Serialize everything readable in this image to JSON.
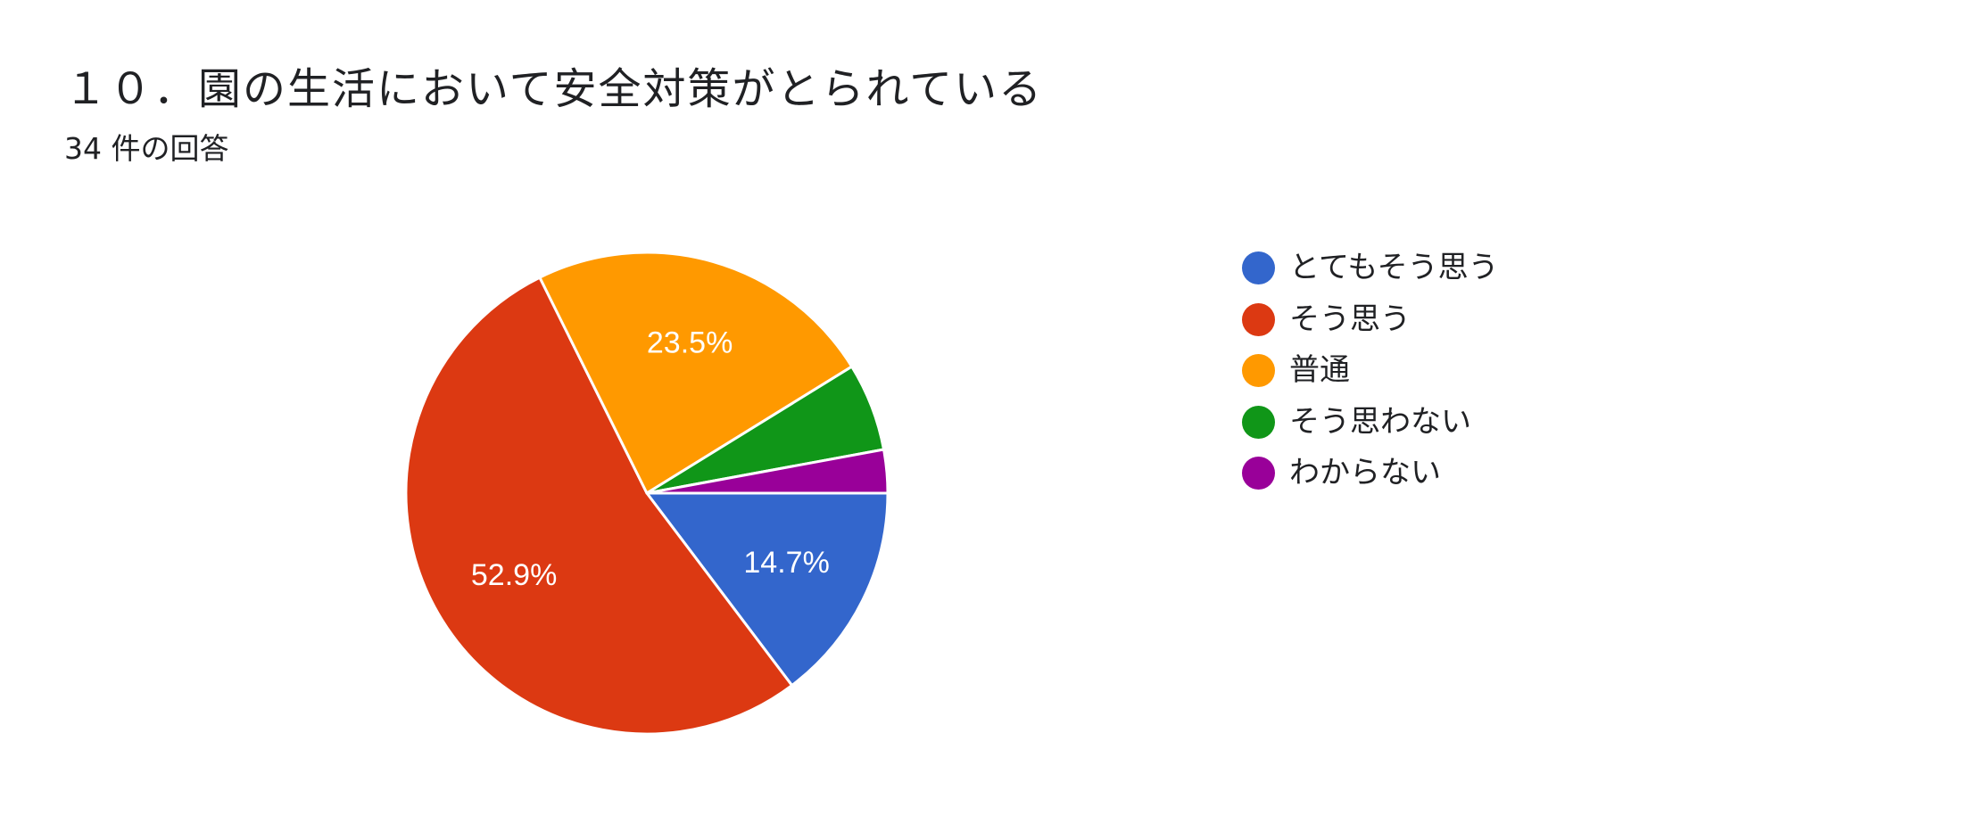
{
  "header": {
    "title": "１０．園の生活において安全対策がとられている",
    "subtitle": "34 件の回答"
  },
  "chart_data": {
    "type": "pie",
    "title": "１０．園の生活において安全対策がとられている",
    "subtitle": "34 件の回答",
    "legend_position": "right",
    "start": "3 o'clock, clockwise",
    "slices": [
      {
        "label": "とてもそう思う",
        "value": 14.7,
        "count": 5,
        "color": "#3366cc",
        "display": "14.7%"
      },
      {
        "label": "そう思う",
        "value": 52.9,
        "count": 18,
        "color": "#dc3912",
        "display": "52.9%"
      },
      {
        "label": "普通",
        "value": 23.5,
        "count": 8,
        "color": "#ff9900",
        "display": "23.5%"
      },
      {
        "label": "そう思わない",
        "value": 5.9,
        "count": 2,
        "color": "#109618",
        "display": ""
      },
      {
        "label": "わからない",
        "value": 2.9,
        "count": 1,
        "color": "#990099",
        "display": ""
      }
    ]
  }
}
